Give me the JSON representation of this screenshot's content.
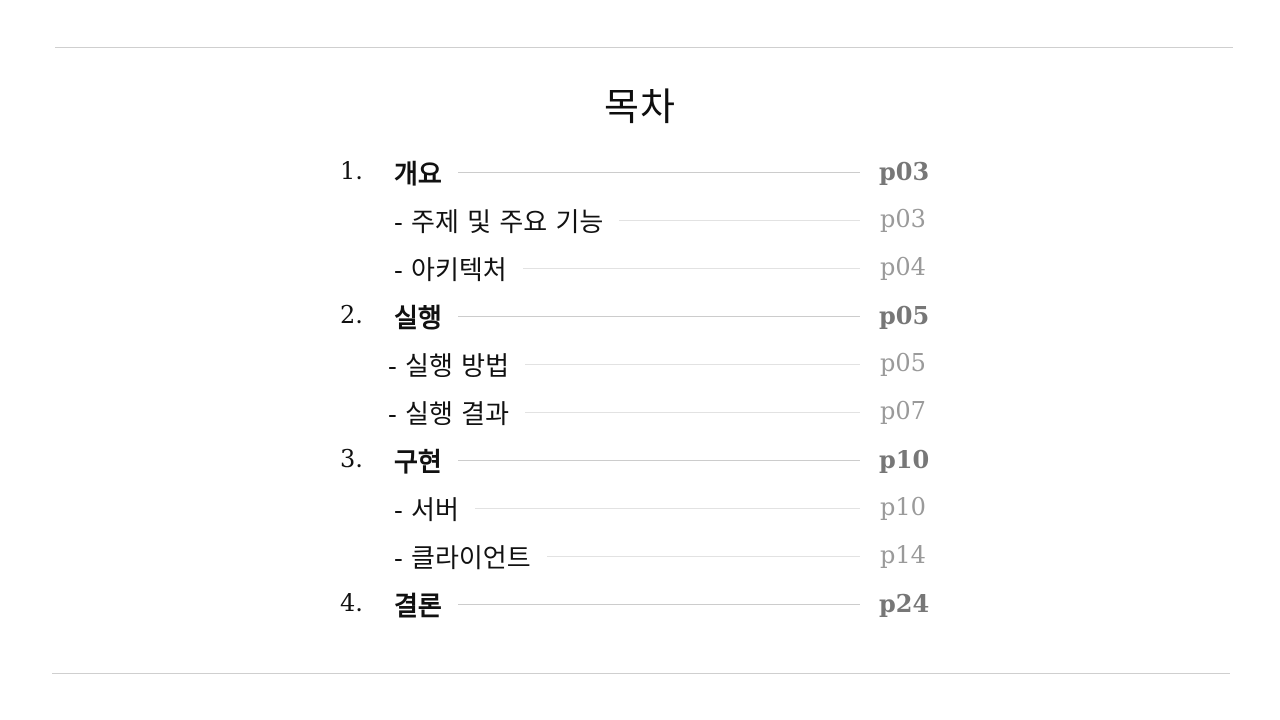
{
  "title": "목차",
  "entries": [
    {
      "number": "1.",
      "label": "개요",
      "page": "p03",
      "level": 1
    },
    {
      "number": "",
      "label": "- 주제 및 주요 기능",
      "page": "p03",
      "level": 2
    },
    {
      "number": "",
      "label": "- 아키텍처",
      "page": "p04",
      "level": 2
    },
    {
      "number": "2.",
      "label": "실행",
      "page": "p05",
      "level": 1
    },
    {
      "number": "",
      "label": "- 실행 방법",
      "page": "p05",
      "level": 2
    },
    {
      "number": "",
      "label": "- 실행 결과",
      "page": "p07",
      "level": 2
    },
    {
      "number": "3.",
      "label": "구현",
      "page": "p10",
      "level": 1
    },
    {
      "number": "",
      "label": "- 서버",
      "page": "p10",
      "level": 2
    },
    {
      "number": "",
      "label": "- 클라이언트",
      "page": "p14",
      "level": 2
    },
    {
      "number": "4.",
      "label": "결론",
      "page": "p24",
      "level": 1
    }
  ]
}
